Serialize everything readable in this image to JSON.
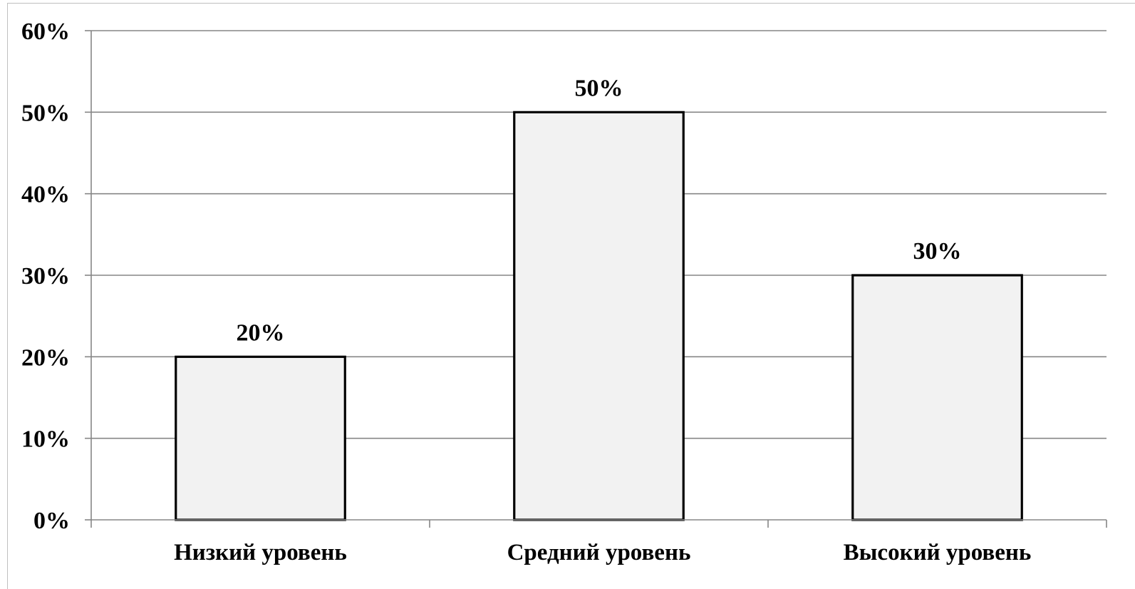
{
  "chart_data": {
    "type": "bar",
    "categories": [
      "Низкий уровень",
      "Средний уровень",
      "Высокий уровень"
    ],
    "values": [
      20,
      50,
      30
    ],
    "data_labels": [
      "20%",
      "50%",
      "30%"
    ],
    "ylim": [
      0,
      60
    ],
    "yticks": [
      0,
      10,
      20,
      30,
      40,
      50,
      60
    ],
    "ytick_labels": [
      "0%",
      "10%",
      "20%",
      "30%",
      "40%",
      "50%",
      "60%"
    ],
    "grid": true,
    "legend": "none",
    "colors": {
      "bar_fill": "#f2f2f2",
      "bar_stroke": "#000000",
      "grid": "#868686",
      "axis": "#868686"
    }
  }
}
